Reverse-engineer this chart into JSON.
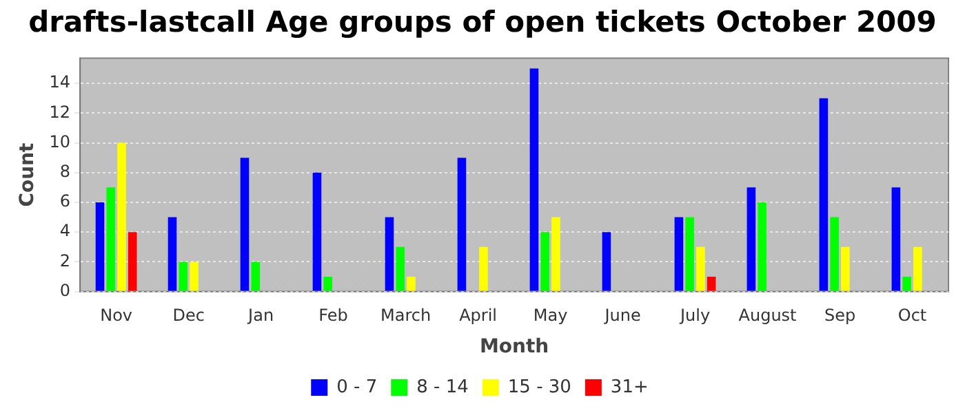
{
  "chart_data": {
    "type": "bar",
    "title": "drafts-lastcall Age groups of open tickets October 2009",
    "xlabel": "Month",
    "ylabel": "Count",
    "categories": [
      "Nov",
      "Dec",
      "Jan",
      "Feb",
      "March",
      "April",
      "May",
      "June",
      "July",
      "August",
      "Sep",
      "Oct"
    ],
    "series": [
      {
        "name": "0 - 7",
        "color": "#0000ff",
        "values": [
          6,
          5,
          9,
          8,
          5,
          9,
          15,
          4,
          5,
          7,
          13,
          7
        ]
      },
      {
        "name": "8 - 14",
        "color": "#00ff00",
        "values": [
          7,
          2,
          2,
          1,
          3,
          0,
          4,
          0,
          5,
          6,
          5,
          1
        ]
      },
      {
        "name": "15 - 30",
        "color": "#ffff00",
        "values": [
          10,
          2,
          0,
          0,
          1,
          3,
          5,
          0,
          3,
          0,
          3,
          3
        ]
      },
      {
        "name": "31+",
        "color": "#ff0000",
        "values": [
          4,
          0,
          0,
          0,
          0,
          0,
          0,
          0,
          1,
          0,
          0,
          0
        ]
      }
    ],
    "ylim": [
      0,
      15.7
    ],
    "yticks": [
      0,
      2,
      4,
      6,
      8,
      10,
      12,
      14
    ],
    "grid": "y",
    "legend": "bottom"
  }
}
